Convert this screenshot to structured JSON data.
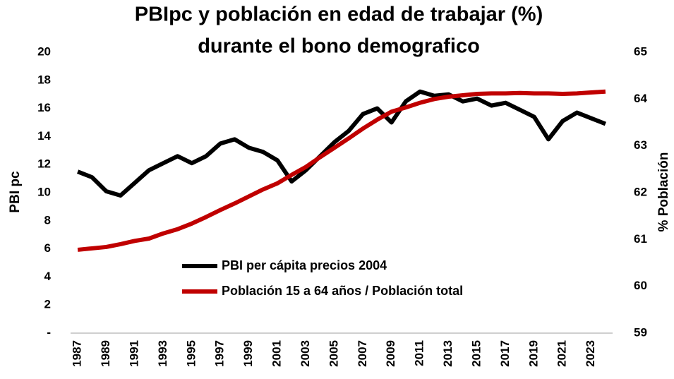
{
  "chart_data": {
    "type": "line",
    "title": [
      "PBIpc y población en edad de trabajar (%)",
      "durante el bono demografico"
    ],
    "ylabel": "PBI  pc",
    "y2label": "% Población",
    "x": [
      1987,
      1988,
      1989,
      1990,
      1991,
      1992,
      1993,
      1994,
      1995,
      1996,
      1997,
      1998,
      1999,
      2000,
      2001,
      2002,
      2003,
      2004,
      2005,
      2006,
      2007,
      2008,
      2009,
      2010,
      2011,
      2012,
      2013,
      2014,
      2015,
      2016,
      2017,
      2018,
      2019,
      2020,
      2021,
      2022,
      2023,
      2024
    ],
    "series": [
      {
        "name": "PBI per cápita precios 2004",
        "color": "#000000",
        "values": [
          11.5,
          11.1,
          10.1,
          9.8,
          10.7,
          11.6,
          12.1,
          12.6,
          12.1,
          12.6,
          13.5,
          13.8,
          13.2,
          12.9,
          12.3,
          10.8,
          11.6,
          12.6,
          13.6,
          14.4,
          15.6,
          16.0,
          15.0,
          16.5,
          17.2,
          16.9,
          17.0,
          16.5,
          16.7,
          16.2,
          16.4,
          15.9,
          15.4,
          13.8,
          15.1,
          15.7,
          15.3,
          14.9
        ]
      },
      {
        "name": "Población 15 a 64 años / Población total",
        "color": "#c00000",
        "axis": "y2",
        "values": [
          60.78,
          60.81,
          60.84,
          60.9,
          60.97,
          61.02,
          61.13,
          61.22,
          61.34,
          61.48,
          61.63,
          61.77,
          61.92,
          62.07,
          62.2,
          62.38,
          62.55,
          62.76,
          62.96,
          63.16,
          63.37,
          63.56,
          63.73,
          63.82,
          63.92,
          64.0,
          64.05,
          64.08,
          64.11,
          64.12,
          64.12,
          64.13,
          64.12,
          64.12,
          64.11,
          64.12,
          64.14,
          64.16
        ]
      }
    ],
    "xlim": [
      1986.5,
      2024.5
    ],
    "xticks": [
      1987,
      1989,
      1991,
      1993,
      1995,
      1997,
      1999,
      2001,
      2003,
      2005,
      2007,
      2009,
      2011,
      2013,
      2015,
      2017,
      2019,
      2021,
      2023
    ],
    "ylim": [
      0,
      20
    ],
    "yticks": [
      {
        "value": 0,
        "label": "-"
      },
      2,
      4,
      6,
      8,
      10,
      12,
      14,
      16,
      18,
      20
    ],
    "y2lim": [
      59,
      65
    ],
    "y2ticks": [
      59,
      60,
      61,
      62,
      63,
      64,
      65
    ],
    "grid": false,
    "legend": "center-left"
  }
}
